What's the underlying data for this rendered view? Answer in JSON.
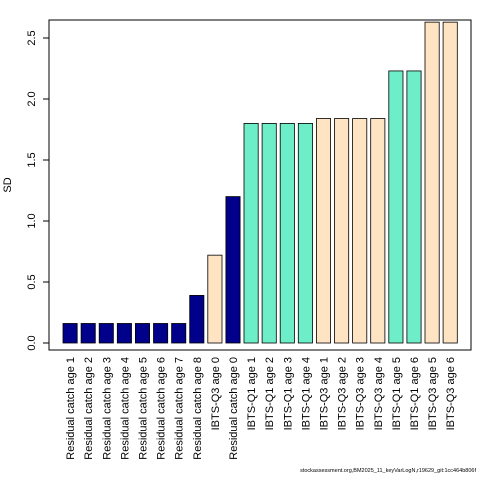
{
  "chart_data": {
    "type": "bar",
    "ylabel": "SD",
    "ylim": [
      0,
      2.62
    ],
    "yticks": [
      0.0,
      0.5,
      1.0,
      1.5,
      2.0,
      2.5
    ],
    "ytick_labels": [
      "0.0",
      "0.5",
      "1.0",
      "1.5",
      "2.0",
      "2.5"
    ],
    "grid": false,
    "categories": [
      "Residual catch age 1",
      "Residual catch age 2",
      "Residual catch age 3",
      "Residual catch age 4",
      "Residual catch age 5",
      "Residual catch age 6",
      "Residual catch age 7",
      "Residual catch age 8",
      "IBTS-Q3 age 0",
      "Residual catch age 0",
      "IBTS-Q1 age 1",
      "IBTS-Q1 age 2",
      "IBTS-Q1 age 3",
      "IBTS-Q1 age 4",
      "IBTS-Q3 age 1",
      "IBTS-Q3 age 2",
      "IBTS-Q3 age 3",
      "IBTS-Q3 age 4",
      "IBTS-Q1 age 5",
      "IBTS-Q1 age 6",
      "IBTS-Q3 age 5",
      "IBTS-Q3 age 6"
    ],
    "values": [
      0.16,
      0.16,
      0.16,
      0.16,
      0.16,
      0.16,
      0.16,
      0.39,
      0.72,
      1.2,
      1.8,
      1.8,
      1.8,
      1.8,
      1.84,
      1.84,
      1.84,
      1.84,
      2.23,
      2.23,
      2.63,
      2.63
    ],
    "colors": [
      "#00008B",
      "#00008B",
      "#00008B",
      "#00008B",
      "#00008B",
      "#00008B",
      "#00008B",
      "#00008B",
      "#FFE4C4",
      "#00008B",
      "#6EEEC8",
      "#6EEEC8",
      "#6EEEC8",
      "#6EEEC8",
      "#FFE4C4",
      "#FFE4C4",
      "#FFE4C4",
      "#FFE4C4",
      "#6EEEC8",
      "#6EEEC8",
      "#FFE4C4",
      "#FFE4C4"
    ]
  },
  "footer_text": "stockassessment.org,BM2025_11_keyVarLogN,r19629_git:1cc464b806f"
}
